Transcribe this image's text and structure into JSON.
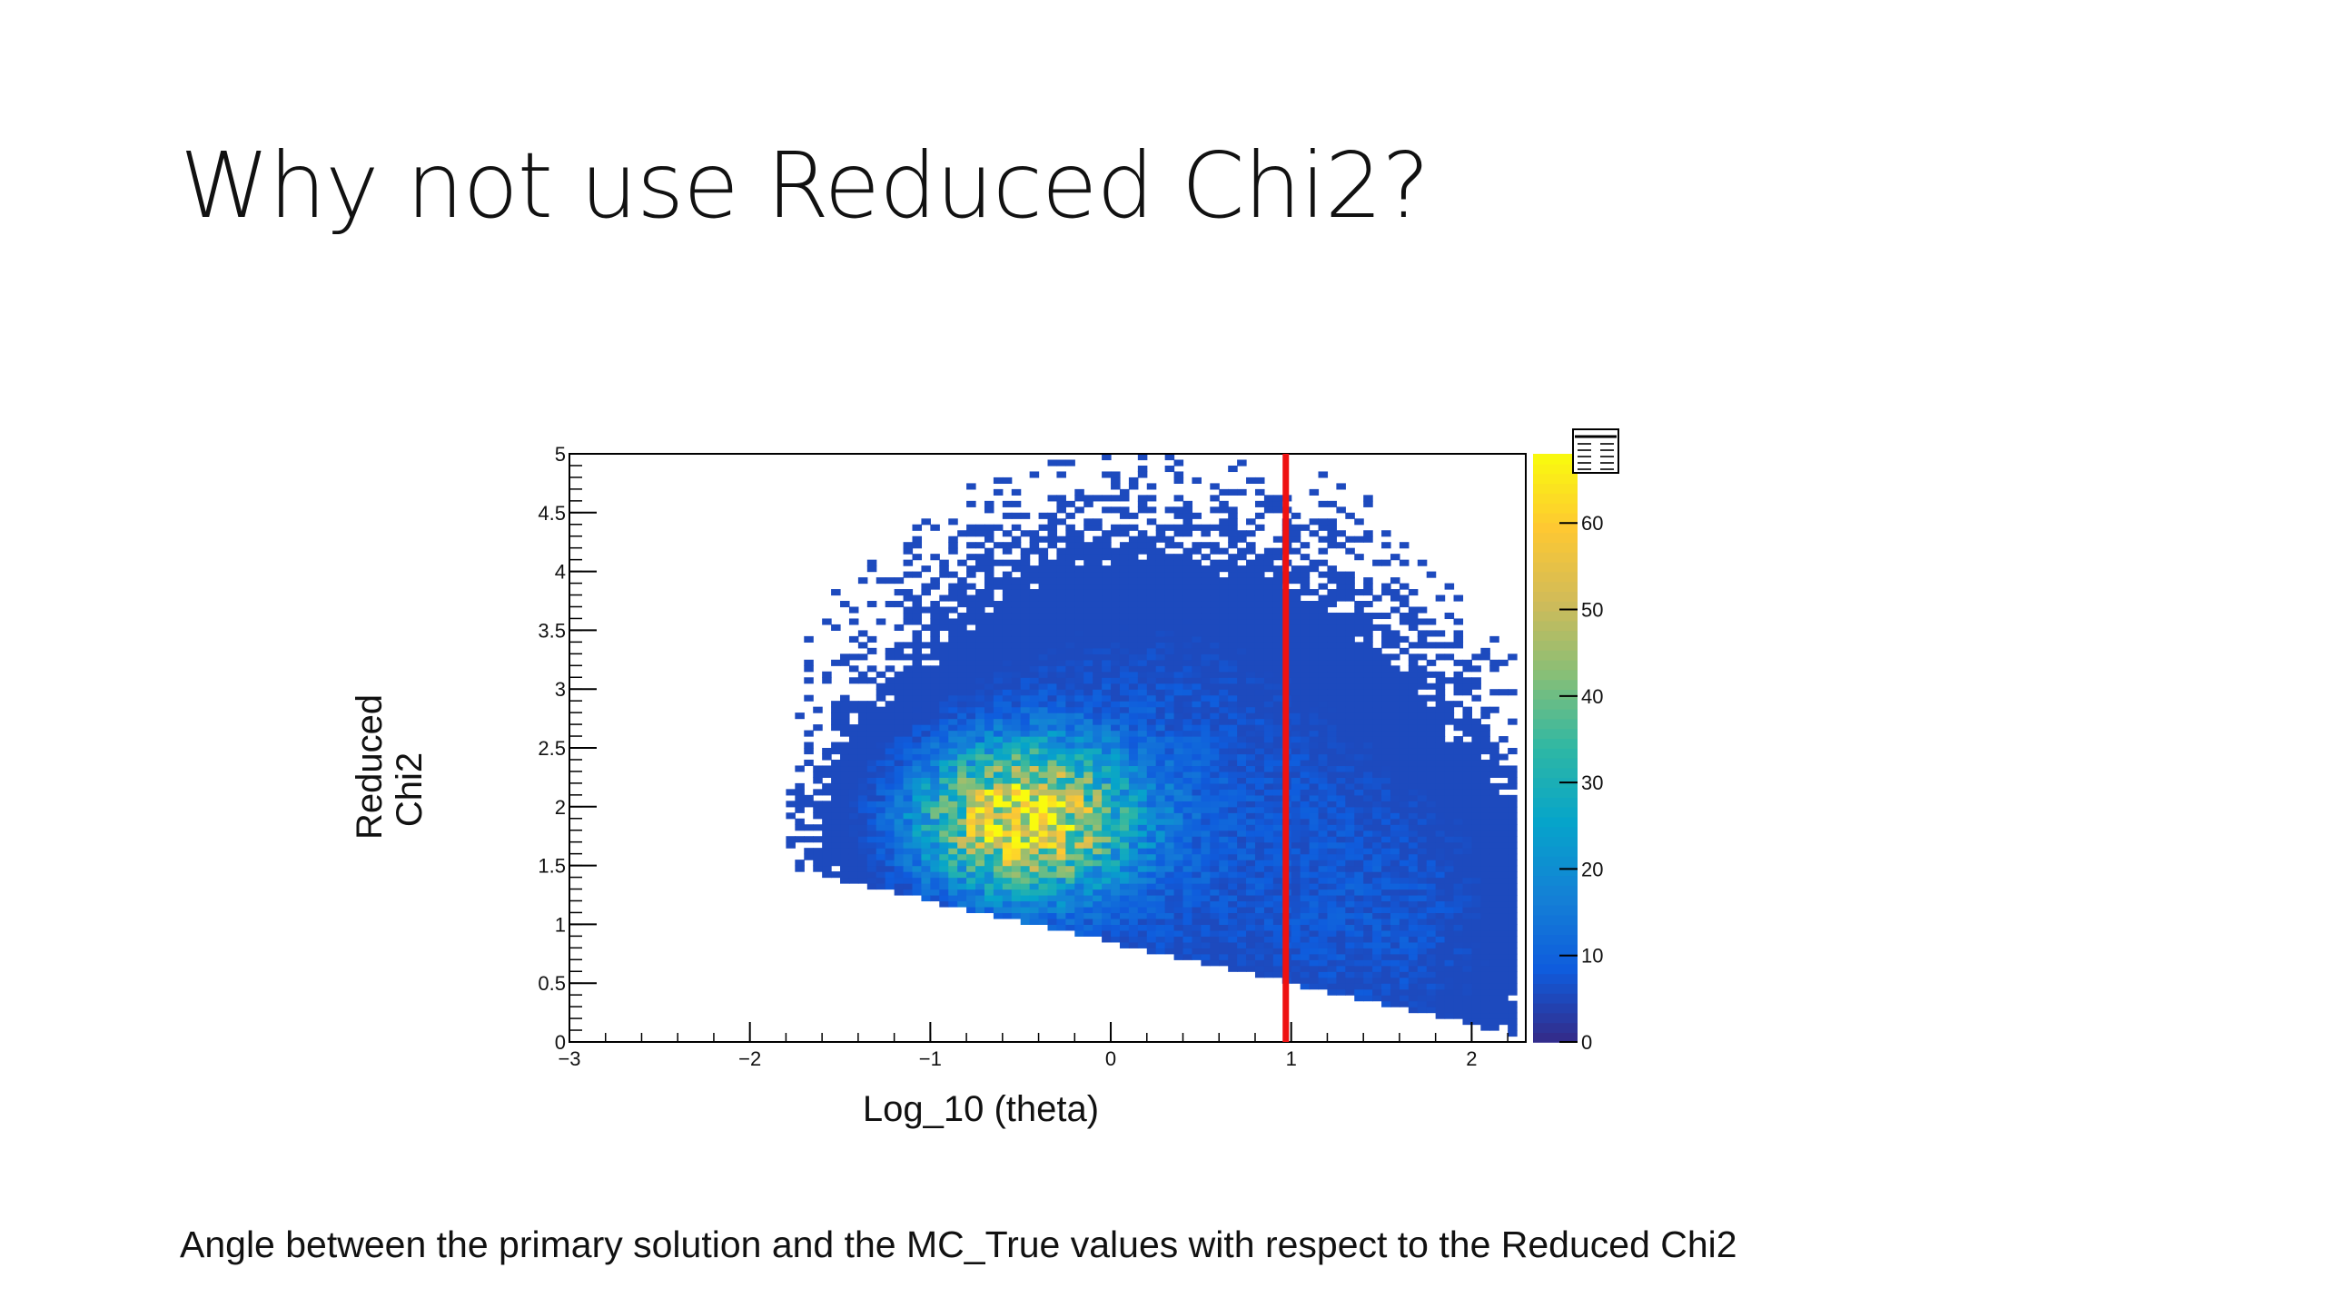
{
  "slide": {
    "title": "Why not use Reduced Chi2?",
    "caption": "Angle between the primary solution and the MC_True values with respect to the Reduced Chi2"
  },
  "chart_data": {
    "type": "heatmap",
    "xlabel": "Log_10 (theta)",
    "ylabel": "Reduced Chi2",
    "xlim": [
      -3,
      2.3
    ],
    "ylim": [
      0,
      5
    ],
    "x_ticks": [
      -3,
      -2,
      -1,
      0,
      1,
      2
    ],
    "x_tick_labels": [
      "−3",
      "−2",
      "−1",
      "0",
      "1",
      "2"
    ],
    "y_ticks": [
      0,
      0.5,
      1,
      1.5,
      2,
      2.5,
      3,
      3.5,
      4,
      4.5,
      5
    ],
    "y_tick_labels": [
      "0",
      "0.5",
      "1",
      "1.5",
      "2",
      "2.5",
      "3",
      "3.5",
      "4",
      "4.5",
      "5"
    ],
    "colorbar": {
      "range": [
        0,
        68
      ],
      "ticks": [
        0,
        10,
        20,
        30,
        40,
        50,
        60
      ],
      "tick_labels": [
        "0",
        "10",
        "20",
        "30",
        "40",
        "50",
        "60"
      ],
      "colors": [
        "#352a87",
        "#0f5cdd",
        "#1481d6",
        "#06a4ca",
        "#2eb7a4",
        "#87bf77",
        "#d1bb59",
        "#fec832",
        "#f9fb0e"
      ]
    },
    "peak": {
      "x": -0.5,
      "y": 1.9,
      "value": 55
    },
    "cut_line": {
      "x": 0.97,
      "color": "#ee1111"
    },
    "bins": {
      "x_count": 106,
      "y_count": 100
    }
  }
}
